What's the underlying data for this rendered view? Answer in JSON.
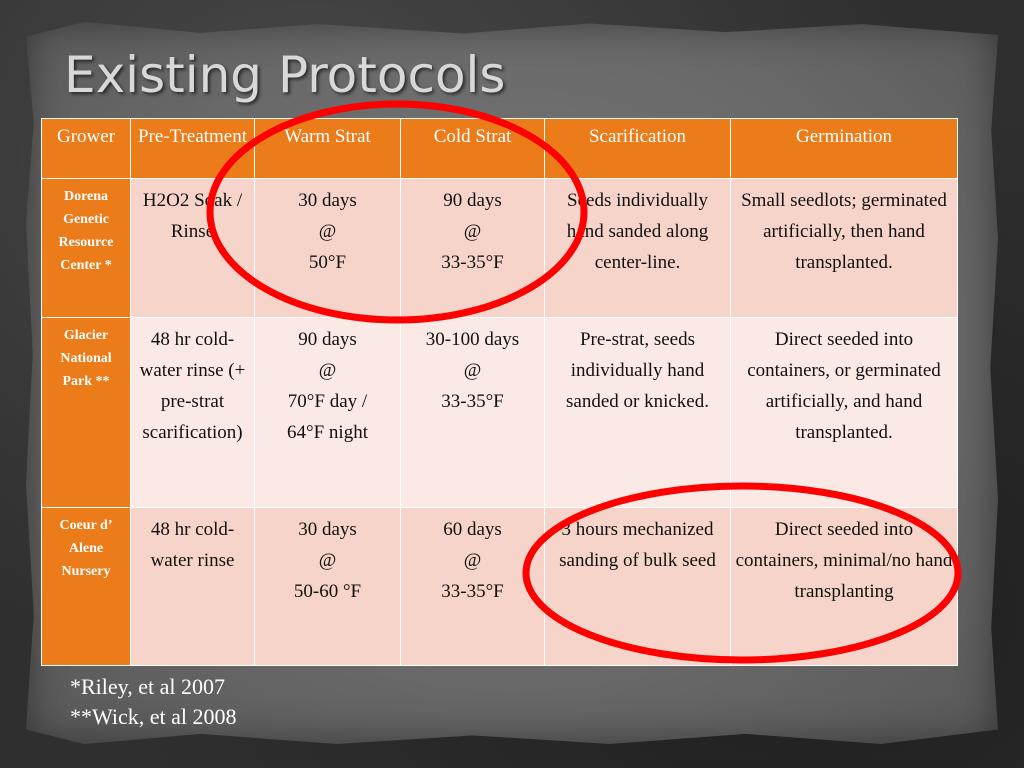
{
  "title": "Existing Protocols",
  "table": {
    "headers": [
      "Grower",
      "Pre-Treatment",
      "Warm Strat",
      "Cold Strat",
      "Scarification",
      "Germination"
    ],
    "rows": [
      {
        "grower": "Dorena Genetic Resource Center *",
        "pretreatment": "H2O2 Soak / Rinse",
        "warm_strat": "30 days\n@\n50°F",
        "cold_strat": "90 days\n@\n33-35°F",
        "scarification": "Seeds individually hand sanded along center-line.",
        "germination": "Small seedlots; germinated artificially, then hand transplanted."
      },
      {
        "grower": "Glacier National Park **",
        "pretreatment": "48 hr cold-water rinse (+ pre-strat scarification)",
        "warm_strat": "90 days\n@\n70°F  day /\n64°F night",
        "cold_strat": "30-100 days\n@\n33-35°F",
        "scarification": "Pre-strat, seeds individually hand sanded or knicked.",
        "germination": "Direct seeded into containers, or germinated artificially, and hand transplanted."
      },
      {
        "grower": "Coeur d’ Alene Nursery",
        "pretreatment": "48 hr cold-water rinse",
        "warm_strat": "30 days\n@\n50-60 °F",
        "cold_strat": "60 days\n@\n33-35°F",
        "scarification": "3 hours mechanized sanding of bulk seed",
        "germination": "Direct seeded into containers, minimal/no hand transplanting"
      }
    ]
  },
  "footnotes": [
    "*Riley, et al 2007",
    "**Wick, et al 2008"
  ],
  "colors": {
    "header_bg": "#ec7c1a",
    "row_odd_bg": "#f6d4c9",
    "row_even_bg": "#fae9e4",
    "highlight_circle": "#ff0000"
  }
}
